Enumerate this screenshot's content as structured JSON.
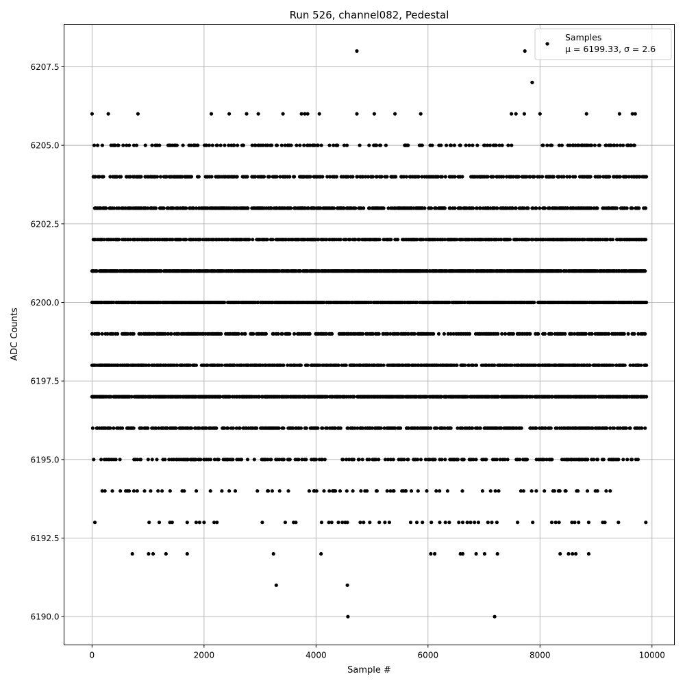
{
  "chart_data": {
    "type": "scatter",
    "title": "Run 526, channel082, Pedestal",
    "xlabel": "Sample #",
    "ylabel": "ADC Counts",
    "xlim": [
      -500,
      10400
    ],
    "ylim": [
      6189.1,
      6208.85
    ],
    "xticks": [
      0,
      2000,
      4000,
      6000,
      8000,
      10000
    ],
    "xtick_labels": [
      "0",
      "2000",
      "4000",
      "6000",
      "8000",
      "10000"
    ],
    "yticks": [
      6190.0,
      6192.5,
      6195.0,
      6197.5,
      6200.0,
      6202.5,
      6205.0,
      6207.5
    ],
    "ytick_labels": [
      "6190.0",
      "6192.5",
      "6195.0",
      "6197.5",
      "6200.0",
      "6202.5",
      "6205.0",
      "6207.5"
    ],
    "grid": true,
    "legend_position": "top-right",
    "series": [
      {
        "name": "Samples",
        "annotation": "μ = 6199.33, σ = 2.6",
        "color": "#000000",
        "marker": "circle",
        "x_range": [
          0,
          9900
        ],
        "level_density": [
          {
            "y": 6194,
            "density": 0.1,
            "x_range": [
              50,
              9450
            ]
          },
          {
            "y": 6195,
            "density": 0.27,
            "x_range": [
              30,
              9750
            ]
          },
          {
            "y": 6196,
            "density": 0.44,
            "x_range": [
              0,
              9900
            ]
          },
          {
            "y": 6197,
            "density": 0.7,
            "x_range": [
              0,
              9900
            ]
          },
          {
            "y": 6198,
            "density": 0.55,
            "x_range": [
              0,
              9900
            ]
          },
          {
            "y": 6199,
            "density": 0.38,
            "x_range": [
              0,
              9900
            ]
          },
          {
            "y": 6200,
            "density": 0.8,
            "x_range": [
              0,
              9900
            ]
          },
          {
            "y": 6201,
            "density": 0.82,
            "x_range": [
              0,
              9900
            ]
          },
          {
            "y": 6202,
            "density": 0.6,
            "x_range": [
              0,
              9900
            ]
          },
          {
            "y": 6203,
            "density": 0.5,
            "x_range": [
              0,
              9900
            ]
          },
          {
            "y": 6204,
            "density": 0.36,
            "x_range": [
              0,
              9900
            ]
          },
          {
            "y": 6205,
            "density": 0.2,
            "x_range": [
              40,
              9900
            ]
          }
        ],
        "sparse_points": [
          [
            0,
            6206
          ],
          [
            290,
            6206
          ],
          [
            820,
            6206
          ],
          [
            2130,
            6206
          ],
          [
            2450,
            6206
          ],
          [
            2760,
            6206
          ],
          [
            2970,
            6206
          ],
          [
            3410,
            6206
          ],
          [
            3740,
            6206
          ],
          [
            3800,
            6206
          ],
          [
            3850,
            6206
          ],
          [
            4060,
            6206
          ],
          [
            4730,
            6206
          ],
          [
            5040,
            6206
          ],
          [
            5410,
            6206
          ],
          [
            5870,
            6206
          ],
          [
            7490,
            6206
          ],
          [
            7570,
            6206
          ],
          [
            7720,
            6206
          ],
          [
            8000,
            6206
          ],
          [
            8830,
            6206
          ],
          [
            9420,
            6206
          ],
          [
            9650,
            6206
          ],
          [
            9700,
            6206
          ],
          [
            4730,
            6208
          ],
          [
            7730,
            6208
          ],
          [
            7860,
            6207
          ],
          [
            50,
            6193
          ],
          [
            1020,
            6193
          ],
          [
            1200,
            6193
          ],
          [
            1390,
            6193
          ],
          [
            1430,
            6193
          ],
          [
            1700,
            6193
          ],
          [
            1860,
            6193
          ],
          [
            1920,
            6193
          ],
          [
            2000,
            6193
          ],
          [
            2180,
            6193
          ],
          [
            2230,
            6193
          ],
          [
            3040,
            6193
          ],
          [
            3450,
            6193
          ],
          [
            3600,
            6193
          ],
          [
            3640,
            6193
          ],
          [
            4100,
            6193
          ],
          [
            4230,
            6193
          ],
          [
            4280,
            6193
          ],
          [
            4400,
            6193
          ],
          [
            4470,
            6193
          ],
          [
            4520,
            6193
          ],
          [
            4560,
            6193
          ],
          [
            4790,
            6193
          ],
          [
            4850,
            6193
          ],
          [
            4960,
            6193
          ],
          [
            5130,
            6193
          ],
          [
            5230,
            6193
          ],
          [
            5310,
            6193
          ],
          [
            5690,
            6193
          ],
          [
            5800,
            6193
          ],
          [
            5900,
            6193
          ],
          [
            6060,
            6193
          ],
          [
            6210,
            6193
          ],
          [
            6310,
            6193
          ],
          [
            6380,
            6193
          ],
          [
            6550,
            6193
          ],
          [
            6620,
            6193
          ],
          [
            6700,
            6193
          ],
          [
            6760,
            6193
          ],
          [
            6830,
            6193
          ],
          [
            6900,
            6193
          ],
          [
            7070,
            6193
          ],
          [
            7140,
            6193
          ],
          [
            7230,
            6193
          ],
          [
            7600,
            6193
          ],
          [
            7870,
            6193
          ],
          [
            8210,
            6193
          ],
          [
            8280,
            6193
          ],
          [
            8340,
            6193
          ],
          [
            8570,
            6193
          ],
          [
            8620,
            6193
          ],
          [
            8690,
            6193
          ],
          [
            8870,
            6193
          ],
          [
            9120,
            6193
          ],
          [
            9160,
            6193
          ],
          [
            9400,
            6193
          ],
          [
            9890,
            6193
          ],
          [
            720,
            6192
          ],
          [
            1010,
            6192
          ],
          [
            1090,
            6192
          ],
          [
            1320,
            6192
          ],
          [
            1700,
            6192
          ],
          [
            3240,
            6192
          ],
          [
            4090,
            6192
          ],
          [
            6050,
            6192
          ],
          [
            6120,
            6192
          ],
          [
            6580,
            6192
          ],
          [
            6620,
            6192
          ],
          [
            6860,
            6192
          ],
          [
            7010,
            6192
          ],
          [
            7240,
            6192
          ],
          [
            8360,
            6192
          ],
          [
            8510,
            6192
          ],
          [
            8580,
            6192
          ],
          [
            8640,
            6192
          ],
          [
            8870,
            6192
          ],
          [
            3290,
            6191
          ],
          [
            4560,
            6191
          ],
          [
            4570,
            6190
          ],
          [
            7190,
            6190
          ]
        ]
      }
    ]
  }
}
